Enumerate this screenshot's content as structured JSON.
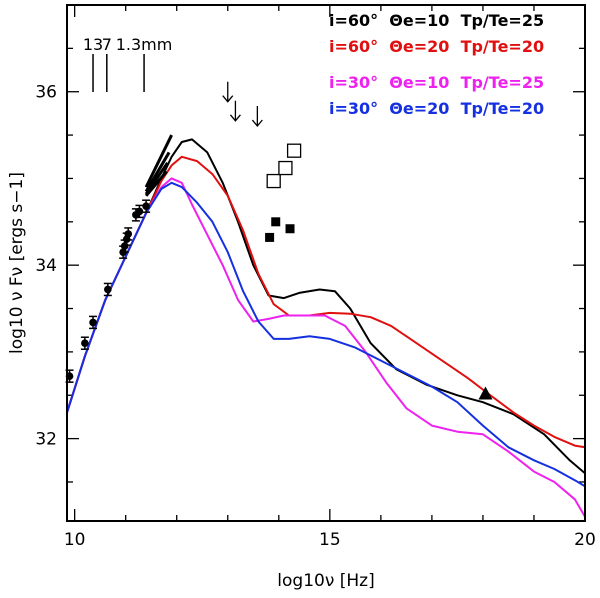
{
  "chart_data": {
    "type": "line",
    "xlabel": "log10ν [Hz]",
    "ylabel": "log10 ν Fν [ergs s−1]",
    "xlim": [
      9.85,
      20
    ],
    "ylim": [
      31.05,
      37.0
    ],
    "xticks": [
      10,
      15,
      20
    ],
    "yticks": [
      32,
      34,
      36
    ],
    "x_minor_step": 1,
    "y_minor_step": 0.5,
    "wavelength_markers": [
      {
        "label": "13",
        "x": 10.36
      },
      {
        "label": "7",
        "x": 10.63
      },
      {
        "label": "1.3mm",
        "x": 11.36
      }
    ],
    "series": [
      {
        "name": "i=60°  Θe=10  Tp/Te=25",
        "color": "#000000",
        "x": [
          9.85,
          10.2,
          10.6,
          11.0,
          11.4,
          11.7,
          11.9,
          12.1,
          12.3,
          12.6,
          12.9,
          13.2,
          13.5,
          13.8,
          14.1,
          14.4,
          14.8,
          15.1,
          15.4,
          15.8,
          16.3,
          16.9,
          17.5,
          18.0,
          18.6,
          19.2,
          19.7,
          20.0
        ],
        "y": [
          32.3,
          32.95,
          33.6,
          34.1,
          34.6,
          35.0,
          35.25,
          35.42,
          35.45,
          35.3,
          34.95,
          34.5,
          34.0,
          33.65,
          33.62,
          33.68,
          33.72,
          33.7,
          33.5,
          33.1,
          32.8,
          32.62,
          32.5,
          32.42,
          32.28,
          32.05,
          31.75,
          31.6
        ]
      },
      {
        "name": "i=60°  Θe=20  Tp/Te=20",
        "color": "#e01010",
        "x": [
          9.85,
          10.2,
          10.6,
          11.0,
          11.4,
          11.7,
          11.9,
          12.1,
          12.4,
          12.7,
          13.0,
          13.3,
          13.6,
          13.9,
          14.2,
          14.6,
          15.0,
          15.4,
          15.8,
          16.2,
          16.7,
          17.2,
          17.7,
          18.1,
          18.6,
          19.0,
          19.4,
          19.8,
          20.0
        ],
        "y": [
          32.3,
          32.95,
          33.6,
          34.1,
          34.6,
          34.97,
          35.15,
          35.25,
          35.2,
          35.05,
          34.8,
          34.4,
          33.9,
          33.55,
          33.42,
          33.42,
          33.45,
          33.44,
          33.4,
          33.3,
          33.1,
          32.9,
          32.7,
          32.52,
          32.3,
          32.15,
          32.02,
          31.92,
          31.9
        ]
      },
      {
        "name": "i=30°  Θe=10  Tp/Te=25",
        "color": "#ee22ee",
        "x": [
          9.85,
          10.2,
          10.6,
          11.0,
          11.4,
          11.7,
          11.9,
          12.1,
          12.3,
          12.6,
          12.9,
          13.2,
          13.5,
          13.8,
          14.1,
          14.5,
          14.9,
          15.3,
          15.7,
          16.1,
          16.5,
          17.0,
          17.5,
          18.0,
          18.5,
          19.0,
          19.4,
          19.8,
          20.0
        ],
        "y": [
          32.3,
          32.95,
          33.6,
          34.1,
          34.6,
          34.9,
          35.0,
          34.95,
          34.7,
          34.35,
          34.0,
          33.6,
          33.35,
          33.38,
          33.42,
          33.42,
          33.42,
          33.3,
          33.0,
          32.65,
          32.35,
          32.15,
          32.08,
          32.05,
          31.85,
          31.62,
          31.5,
          31.3,
          31.1
        ]
      },
      {
        "name": "i=30°  Θe=20  Tp/Te=20",
        "color": "#1530e0",
        "x": [
          9.85,
          10.2,
          10.6,
          11.0,
          11.4,
          11.7,
          11.9,
          12.1,
          12.4,
          12.7,
          13.0,
          13.3,
          13.6,
          13.9,
          14.2,
          14.6,
          15.0,
          15.5,
          16.0,
          16.5,
          17.0,
          17.5,
          18.0,
          18.5,
          19.0,
          19.4,
          19.8,
          20.0
        ],
        "y": [
          32.3,
          32.95,
          33.6,
          34.1,
          34.6,
          34.88,
          34.95,
          34.9,
          34.72,
          34.5,
          34.15,
          33.7,
          33.35,
          33.15,
          33.15,
          33.18,
          33.15,
          33.05,
          32.9,
          32.75,
          32.6,
          32.42,
          32.15,
          31.9,
          31.75,
          31.65,
          31.52,
          31.45
        ]
      }
    ],
    "data_points": [
      {
        "x": 9.9,
        "y": 32.72
      },
      {
        "x": 10.2,
        "y": 33.1
      },
      {
        "x": 10.36,
        "y": 33.34
      },
      {
        "x": 10.65,
        "y": 33.72
      },
      {
        "x": 10.95,
        "y": 34.15
      },
      {
        "x": 10.98,
        "y": 34.22
      },
      {
        "x": 11.02,
        "y": 34.3
      },
      {
        "x": 11.05,
        "y": 34.36
      },
      {
        "x": 11.2,
        "y": 34.58
      },
      {
        "x": 11.27,
        "y": 34.62
      },
      {
        "x": 11.4,
        "y": 34.68
      }
    ],
    "upper_limits": [
      {
        "x": 13.0,
        "y": 36.0
      },
      {
        "x": 13.15,
        "y": 35.78
      },
      {
        "x": 13.58,
        "y": 35.72
      }
    ],
    "open_squares": [
      {
        "x": 13.9,
        "y": 34.97
      },
      {
        "x": 14.13,
        "y": 35.12
      },
      {
        "x": 14.3,
        "y": 35.32
      }
    ],
    "filled_squares": [
      {
        "x": 13.82,
        "y": 34.32
      },
      {
        "x": 13.94,
        "y": 34.5
      },
      {
        "x": 14.22,
        "y": 34.42
      }
    ],
    "triangles": [
      {
        "x": 18.05,
        "y": 32.52
      }
    ],
    "spectral_index_lines": [
      {
        "x1": 11.4,
        "y1": 34.9,
        "x2": 11.9,
        "y2": 35.5
      },
      {
        "x1": 11.4,
        "y1": 34.85,
        "x2": 11.85,
        "y2": 35.3
      },
      {
        "x1": 11.4,
        "y1": 34.82,
        "x2": 11.82,
        "y2": 35.18
      },
      {
        "x1": 11.4,
        "y1": 34.8,
        "x2": 11.8,
        "y2": 35.08
      }
    ]
  }
}
